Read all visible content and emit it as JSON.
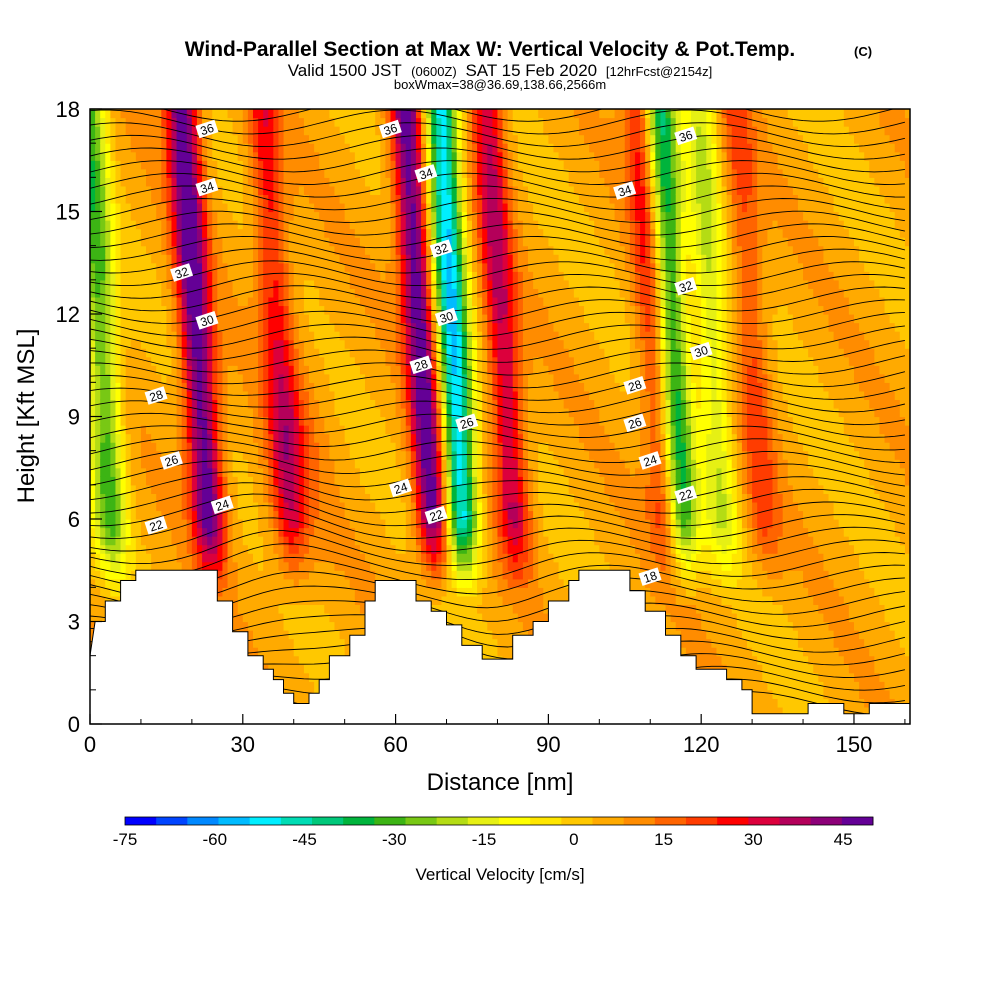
{
  "title": "Wind-Parallel Section at Max W: Vertical Velocity & Pot.Temp.",
  "title_mark": "(C)",
  "subtitle": {
    "part1": "Valid 1500 JST",
    "part2": "(0600Z)",
    "part3": "SAT 15 Feb 2020",
    "part4": "[12hrFcst@2154z]"
  },
  "subtitle2": "boxWmax=38@36.69,138.66,2566m",
  "chart_data": {
    "type": "heatmap",
    "xlabel": "Distance [nm]",
    "ylabel": "Height [Kft MSL]",
    "xlim": [
      0,
      161
    ],
    "ylim": [
      0,
      18
    ],
    "xticks": [
      0,
      30,
      60,
      90,
      120,
      150
    ],
    "yticks": [
      0,
      3,
      6,
      9,
      12,
      15,
      18
    ],
    "colorbar": {
      "label": "Vertical Velocity [cm/s]",
      "ticks": [
        -75,
        -60,
        -45,
        -30,
        -15,
        0,
        15,
        30,
        45
      ],
      "range": [
        -75,
        50
      ],
      "colors": [
        "#0000ff",
        "#0044ff",
        "#0088ff",
        "#00bbff",
        "#00eeff",
        "#00dcb4",
        "#00c87a",
        "#00b43c",
        "#3cb414",
        "#78c814",
        "#b4dc14",
        "#e6f014",
        "#ffff00",
        "#ffe600",
        "#ffc800",
        "#ffaa00",
        "#ff8c00",
        "#ff6400",
        "#ff3c00",
        "#ff0000",
        "#dc003c",
        "#b4005a",
        "#8c0078",
        "#640096"
      ]
    },
    "updrafts": [
      {
        "x": 22,
        "strength": 45
      },
      {
        "x": 38,
        "strength": 22
      },
      {
        "x": 66,
        "strength": 45
      },
      {
        "x": 82,
        "strength": 30
      },
      {
        "x": 112,
        "strength": 25
      },
      {
        "x": 131,
        "strength": 15
      }
    ],
    "downdrafts": [
      {
        "x": 3,
        "strength": -35
      },
      {
        "x": 72,
        "strength": -60
      },
      {
        "x": 115,
        "strength": -45
      },
      {
        "x": 123,
        "strength": -22
      }
    ],
    "terrain": [
      [
        0,
        2.0
      ],
      [
        1,
        3.0
      ],
      [
        3,
        3.0
      ],
      [
        3,
        3.6
      ],
      [
        6,
        3.6
      ],
      [
        6,
        4.2
      ],
      [
        9,
        4.2
      ],
      [
        9,
        4.5
      ],
      [
        25,
        4.5
      ],
      [
        25,
        3.6
      ],
      [
        28,
        3.6
      ],
      [
        28,
        2.7
      ],
      [
        31,
        2.7
      ],
      [
        31,
        2.0
      ],
      [
        34,
        2.0
      ],
      [
        34,
        1.6
      ],
      [
        36,
        1.6
      ],
      [
        36,
        1.3
      ],
      [
        38,
        1.3
      ],
      [
        38,
        0.9
      ],
      [
        40,
        0.9
      ],
      [
        40,
        0.6
      ],
      [
        43,
        0.6
      ],
      [
        43,
        0.9
      ],
      [
        45,
        0.9
      ],
      [
        45,
        1.3
      ],
      [
        47,
        1.3
      ],
      [
        47,
        2.0
      ],
      [
        51,
        2.0
      ],
      [
        51,
        2.6
      ],
      [
        54,
        2.6
      ],
      [
        54,
        3.6
      ],
      [
        56,
        3.6
      ],
      [
        56,
        4.2
      ],
      [
        64,
        4.2
      ],
      [
        64,
        3.6
      ],
      [
        67,
        3.6
      ],
      [
        67,
        3.3
      ],
      [
        70,
        3.3
      ],
      [
        70,
        2.9
      ],
      [
        73,
        2.9
      ],
      [
        73,
        2.3
      ],
      [
        77,
        2.3
      ],
      [
        77,
        1.9
      ],
      [
        83,
        1.9
      ],
      [
        83,
        2.6
      ],
      [
        87,
        2.6
      ],
      [
        87,
        3.0
      ],
      [
        90,
        3.0
      ],
      [
        90,
        3.6
      ],
      [
        94,
        3.6
      ],
      [
        94,
        4.2
      ],
      [
        96,
        4.2
      ],
      [
        96,
        4.5
      ],
      [
        106,
        4.5
      ],
      [
        106,
        3.9
      ],
      [
        109,
        3.9
      ],
      [
        109,
        3.3
      ],
      [
        113,
        3.3
      ],
      [
        113,
        2.6
      ],
      [
        116,
        2.6
      ],
      [
        116,
        2.0
      ],
      [
        119,
        2.0
      ],
      [
        119,
        1.6
      ],
      [
        125,
        1.6
      ],
      [
        125,
        1.3
      ],
      [
        128,
        1.3
      ],
      [
        128,
        1.0
      ],
      [
        130,
        1.0
      ],
      [
        130,
        0.3
      ],
      [
        141,
        0.3
      ],
      [
        141,
        0.6
      ],
      [
        148,
        0.6
      ],
      [
        148,
        0.3
      ],
      [
        153,
        0.3
      ],
      [
        153,
        0.6
      ],
      [
        161,
        0.6
      ],
      [
        161,
        0
      ]
    ],
    "contour_labels": [
      {
        "text": "36",
        "x": 23,
        "y": 17.4
      },
      {
        "text": "36",
        "x": 59,
        "y": 17.4
      },
      {
        "text": "36",
        "x": 117,
        "y": 17.2
      },
      {
        "text": "34",
        "x": 23,
        "y": 15.7
      },
      {
        "text": "34",
        "x": 66,
        "y": 16.1
      },
      {
        "text": "34",
        "x": 105,
        "y": 15.6
      },
      {
        "text": "32",
        "x": 18,
        "y": 13.2
      },
      {
        "text": "32",
        "x": 69,
        "y": 13.9
      },
      {
        "text": "32",
        "x": 117,
        "y": 12.8
      },
      {
        "text": "30",
        "x": 23,
        "y": 11.8
      },
      {
        "text": "30",
        "x": 70,
        "y": 11.9
      },
      {
        "text": "30",
        "x": 120,
        "y": 10.9
      },
      {
        "text": "28",
        "x": 13,
        "y": 9.6
      },
      {
        "text": "28",
        "x": 65,
        "y": 10.5
      },
      {
        "text": "28",
        "x": 107,
        "y": 9.9
      },
      {
        "text": "26",
        "x": 16,
        "y": 7.7
      },
      {
        "text": "26",
        "x": 74,
        "y": 8.8
      },
      {
        "text": "26",
        "x": 107,
        "y": 8.8
      },
      {
        "text": "24",
        "x": 26,
        "y": 6.4
      },
      {
        "text": "24",
        "x": 61,
        "y": 6.9
      },
      {
        "text": "24",
        "x": 110,
        "y": 7.7
      },
      {
        "text": "22",
        "x": 13,
        "y": 5.8
      },
      {
        "text": "22",
        "x": 68,
        "y": 6.1
      },
      {
        "text": "22",
        "x": 117,
        "y": 6.7
      },
      {
        "text": "18",
        "x": 110,
        "y": 4.3
      }
    ]
  }
}
